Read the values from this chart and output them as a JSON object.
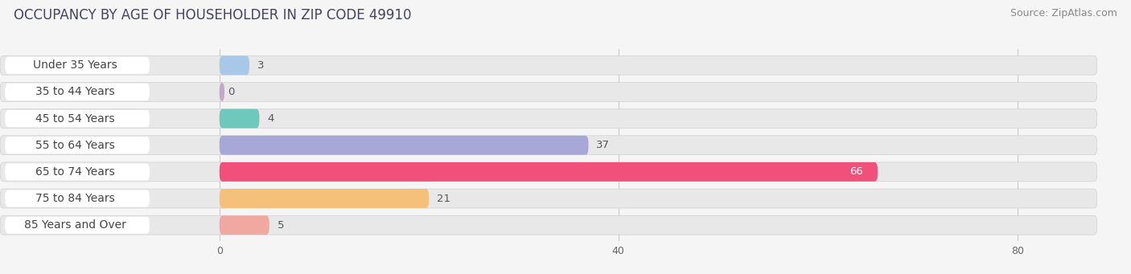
{
  "title": "OCCUPANCY BY AGE OF HOUSEHOLDER IN ZIP CODE 49910",
  "source": "Source: ZipAtlas.com",
  "categories": [
    "Under 35 Years",
    "35 to 44 Years",
    "45 to 54 Years",
    "55 to 64 Years",
    "65 to 74 Years",
    "75 to 84 Years",
    "85 Years and Over"
  ],
  "values": [
    3,
    0,
    4,
    37,
    66,
    21,
    5
  ],
  "bar_colors": [
    "#a8c8e8",
    "#c4a8cc",
    "#6ec8bc",
    "#a8a8d8",
    "#f0507a",
    "#f5c07a",
    "#f0a8a0"
  ],
  "xlim": [
    0,
    85
  ],
  "xticks": [
    0,
    40,
    80
  ],
  "background_color": "#f5f5f5",
  "bar_bg_color": "#e8e8e8",
  "label_bg_color": "#ffffff",
  "title_fontsize": 12,
  "source_fontsize": 9,
  "label_fontsize": 10,
  "value_fontsize": 9.5,
  "value_label_66_color": "white"
}
